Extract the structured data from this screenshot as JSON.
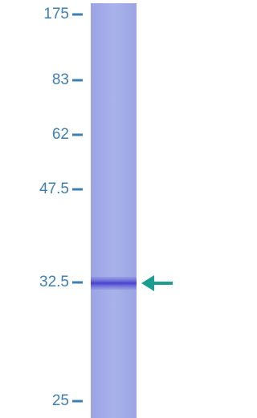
{
  "markers": [
    {
      "label": "175"
    },
    {
      "label": "83"
    },
    {
      "label": "62"
    },
    {
      "label": "47.5"
    },
    {
      "label": "32.5"
    },
    {
      "label": "25"
    }
  ]
}
